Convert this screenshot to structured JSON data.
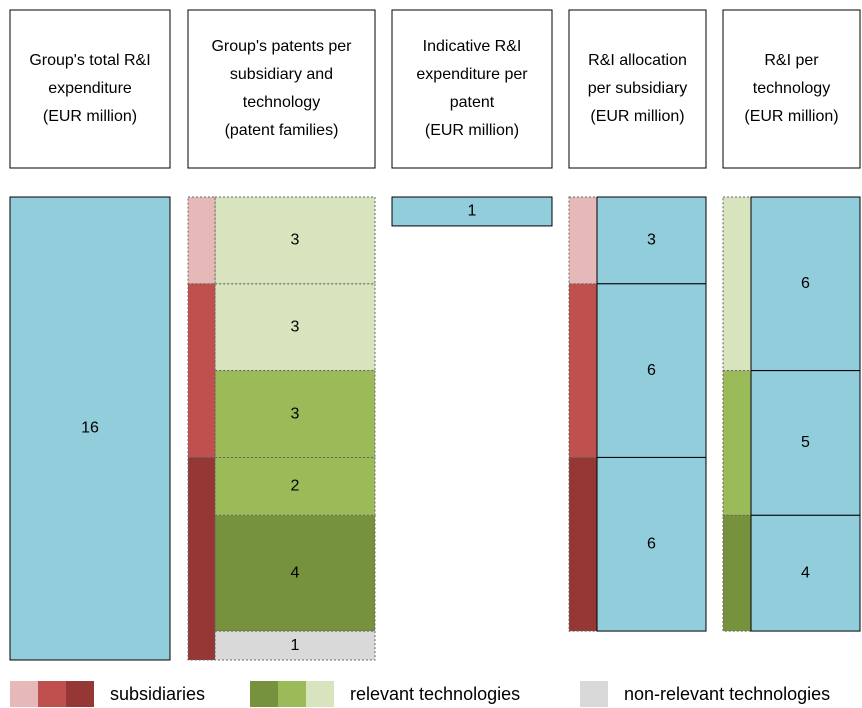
{
  "headers": [
    [
      "Group's total R&I",
      "expenditure",
      "(EUR million)"
    ],
    [
      "Group's patents per",
      "subsidiary and",
      "technology",
      "(patent families)"
    ],
    [
      "Indicative R&I",
      "expenditure per",
      "patent",
      "(EUR million)"
    ],
    [
      "R&I allocation",
      "per subsidiary",
      "(EUR million)"
    ],
    [
      "R&I per",
      "technology",
      "(EUR million)"
    ]
  ],
  "total": {
    "value": 16,
    "color": "#92cddc"
  },
  "patents": [
    {
      "value": 3,
      "color": "#d7e4bd"
    },
    {
      "value": 3,
      "color": "#d7e4bd"
    },
    {
      "value": 3,
      "color": "#9bbb59"
    },
    {
      "value": 2,
      "color": "#9bbb59"
    },
    {
      "value": 4,
      "color": "#76923c"
    },
    {
      "value": 1,
      "color": "#d9d9d9"
    }
  ],
  "per_patent": {
    "value": 1,
    "color": "#92cddc"
  },
  "per_subsidiary": [
    {
      "value": 3,
      "color": "#e6b9b8"
    },
    {
      "value": 6,
      "color": "#c0504d"
    },
    {
      "value": 6,
      "color": "#953735"
    }
  ],
  "per_technology": [
    {
      "value": 6,
      "color": "#d7e4bd"
    },
    {
      "value": 5,
      "color": "#9bbb59"
    },
    {
      "value": 4,
      "color": "#76923c"
    }
  ],
  "legend": [
    {
      "label": "subsidiaries",
      "colors": [
        "#e6b9b8",
        "#c0504d",
        "#953735"
      ]
    },
    {
      "label": "relevant technologies",
      "colors": [
        "#76923c",
        "#9bbb59",
        "#d7e4bd"
      ]
    },
    {
      "label": "non-relevant technologies",
      "colors": [
        "#d9d9d9"
      ]
    }
  ]
}
